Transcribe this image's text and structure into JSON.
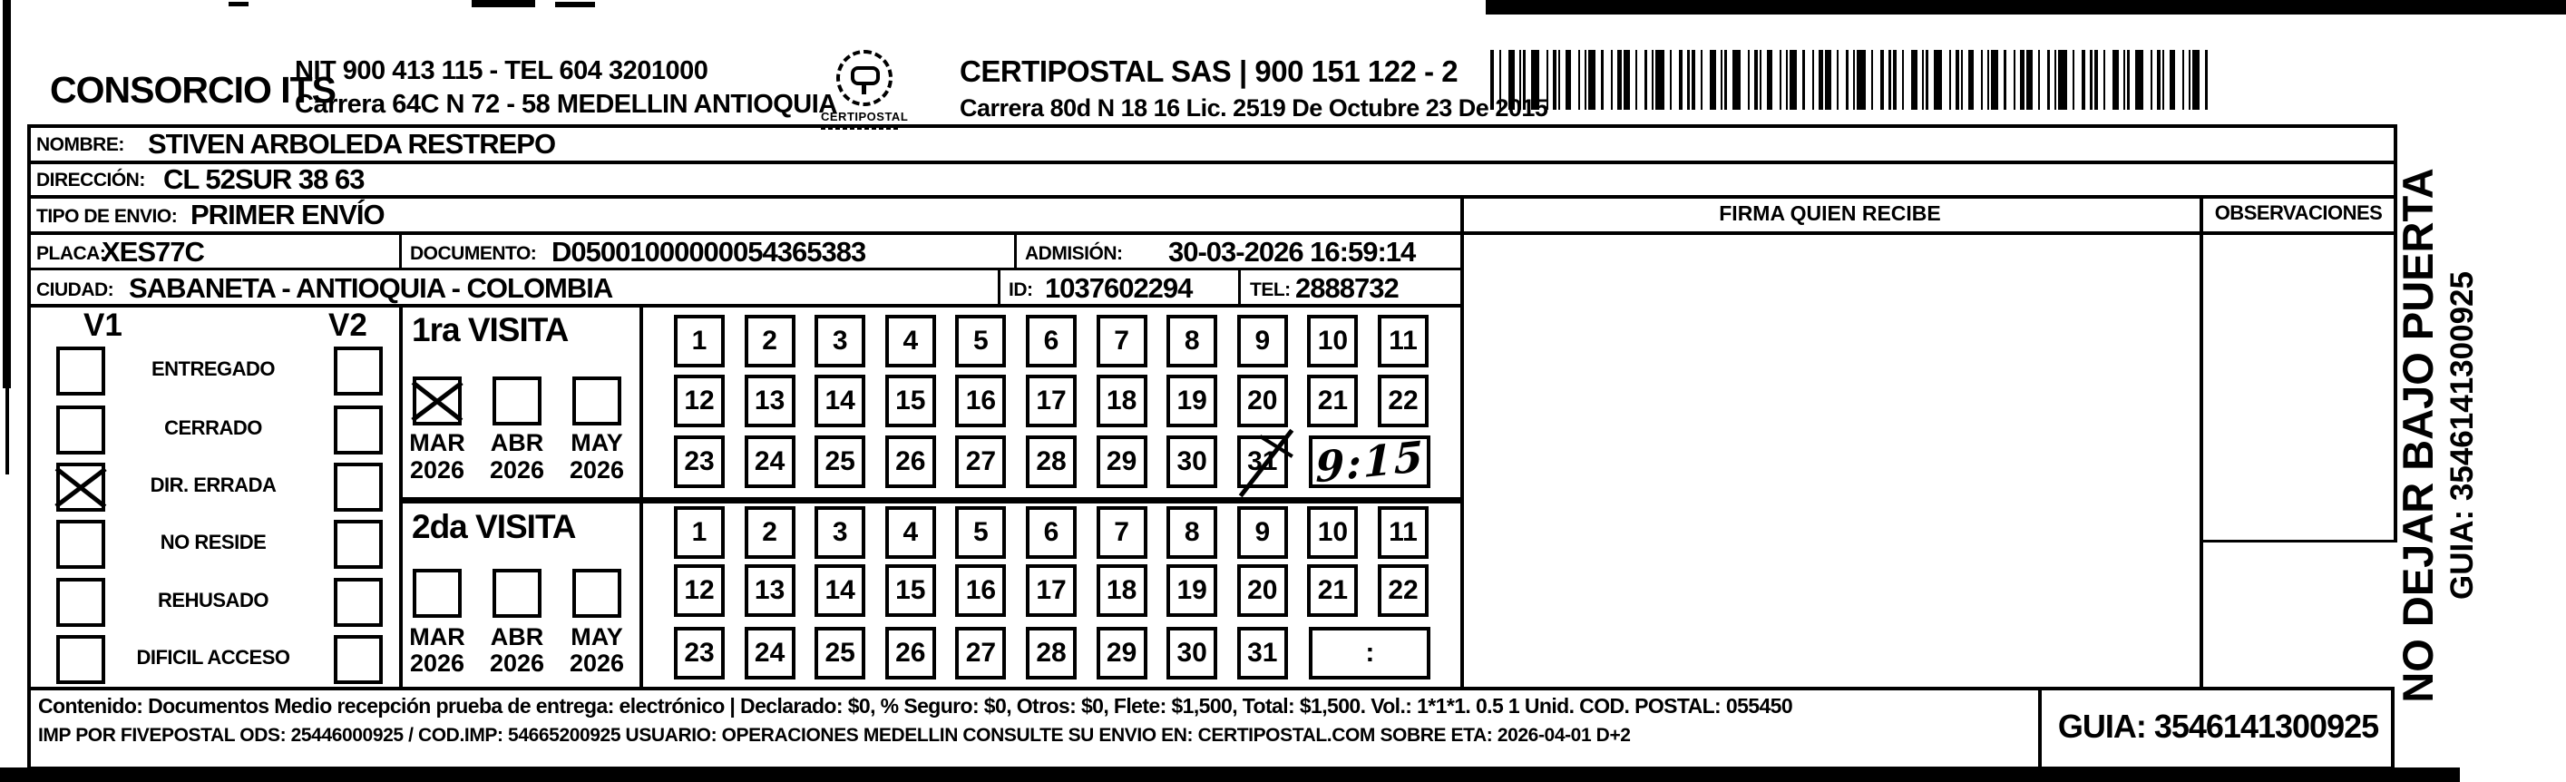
{
  "header": {
    "company_name": "CONSORCIO ITS",
    "company_nit_line": "NIT 900 413 115 - TEL 604 3201000",
    "company_address_line": "Carrera 64C N 72 - 58 MEDELLIN ANTIOQUIA",
    "logo_caption": "CERTIPOSTAL",
    "certipostal_name_line": "CERTIPOSTAL SAS | 900 151 122 - 2",
    "certipostal_address_line": "Carrera 80d N 18 16  Lic. 2519 De Octubre 23 De 2015"
  },
  "shipment": {
    "nombre": {
      "label": "NOMBRE:",
      "value": "STIVEN ARBOLEDA RESTREPO"
    },
    "direccion": {
      "label": "DIRECCIÓN:",
      "value": "CL 52SUR 38 63"
    },
    "tipo_envio": {
      "label": "TIPO DE ENVIO:",
      "value": "PRIMER ENVÍO"
    },
    "placa": {
      "label": "PLACA:",
      "value": "XES77C"
    },
    "documento": {
      "label": "DOCUMENTO:",
      "value": "D05001000000054365383"
    },
    "admision": {
      "label": "ADMISIÓN:",
      "value": "30-03-2026 16:59:14"
    },
    "ciudad": {
      "label": "CIUDAD:",
      "value": "SABANETA - ANTIOQUIA - COLOMBIA"
    },
    "id": {
      "label": "ID:",
      "value": "1037602294"
    },
    "tel": {
      "label": "TEL:",
      "value": "2888732"
    }
  },
  "status_panel": {
    "v1_header": "V1",
    "v2_header": "V2",
    "options": [
      {
        "label": "ENTREGADO",
        "v1_checked": false,
        "v2_checked": false
      },
      {
        "label": "CERRADO",
        "v1_checked": false,
        "v2_checked": false
      },
      {
        "label": "DIR. ERRADA",
        "v1_checked": true,
        "v2_checked": false
      },
      {
        "label": "NO RESIDE",
        "v1_checked": false,
        "v2_checked": false
      },
      {
        "label": "REHUSADO",
        "v1_checked": false,
        "v2_checked": false
      },
      {
        "label": "DIFICIL ACCESO",
        "v1_checked": false,
        "v2_checked": false
      }
    ]
  },
  "visits": [
    {
      "title": "1ra VISITA",
      "months": [
        {
          "label": "MAR",
          "year": "2026",
          "checked": true
        },
        {
          "label": "ABR",
          "year": "2026",
          "checked": false
        },
        {
          "label": "MAY",
          "year": "2026",
          "checked": false
        }
      ],
      "days_row1": [
        "1",
        "2",
        "3",
        "4",
        "5",
        "6",
        "7",
        "8",
        "9",
        "10",
        "11"
      ],
      "days_row2": [
        "12",
        "13",
        "14",
        "15",
        "16",
        "17",
        "18",
        "19",
        "20",
        "21",
        "22"
      ],
      "days_row3": [
        "23",
        "24",
        "25",
        "26",
        "27",
        "28",
        "29",
        "30",
        "31"
      ],
      "crossed_day": "31",
      "time_box_value": "9:15",
      "time_handwritten": true
    },
    {
      "title": "2da VISITA",
      "months": [
        {
          "label": "MAR",
          "year": "2026",
          "checked": false
        },
        {
          "label": "ABR",
          "year": "2026",
          "checked": false
        },
        {
          "label": "MAY",
          "year": "2026",
          "checked": false
        }
      ],
      "days_row1": [
        "1",
        "2",
        "3",
        "4",
        "5",
        "6",
        "7",
        "8",
        "9",
        "10",
        "11"
      ],
      "days_row2": [
        "12",
        "13",
        "14",
        "15",
        "16",
        "17",
        "18",
        "19",
        "20",
        "21",
        "22"
      ],
      "days_row3": [
        "23",
        "24",
        "25",
        "26",
        "27",
        "28",
        "29",
        "30",
        "31"
      ],
      "crossed_day": "",
      "time_box_value": ":",
      "time_handwritten": false
    }
  ],
  "signature_area": {
    "firma_header": "FIRMA QUIEN RECIBE",
    "observaciones_header": "OBSERVACIONES"
  },
  "side_vertical_text": {
    "line1": "NO DEJAR BAJO PUERTA",
    "line2": "GUIA: 3546141300925"
  },
  "footer": {
    "contenido_line": "Contenido: Documentos Medio recepción prueba de entrega: electrónico | Declarado: $0, % Seguro: $0, Otros: $0, Flete: $1,500, Total: $1,500. Vol.: 1*1*1. 0.5  1 Unid. COD. POSTAL: 055450",
    "imp_line": "IMP POR FIVEPOSTAL ODS: 25446000925 / COD.IMP: 54665200925 USUARIO: OPERACIONES MEDELLIN CONSULTE SU ENVIO EN: CERTIPOSTAL.COM SOBRE ETA: 2026-04-01 D+2",
    "guia_box": "GUIA: 3546141300925"
  },
  "colors": {
    "ink": "#000000",
    "paper": "#ffffff"
  }
}
